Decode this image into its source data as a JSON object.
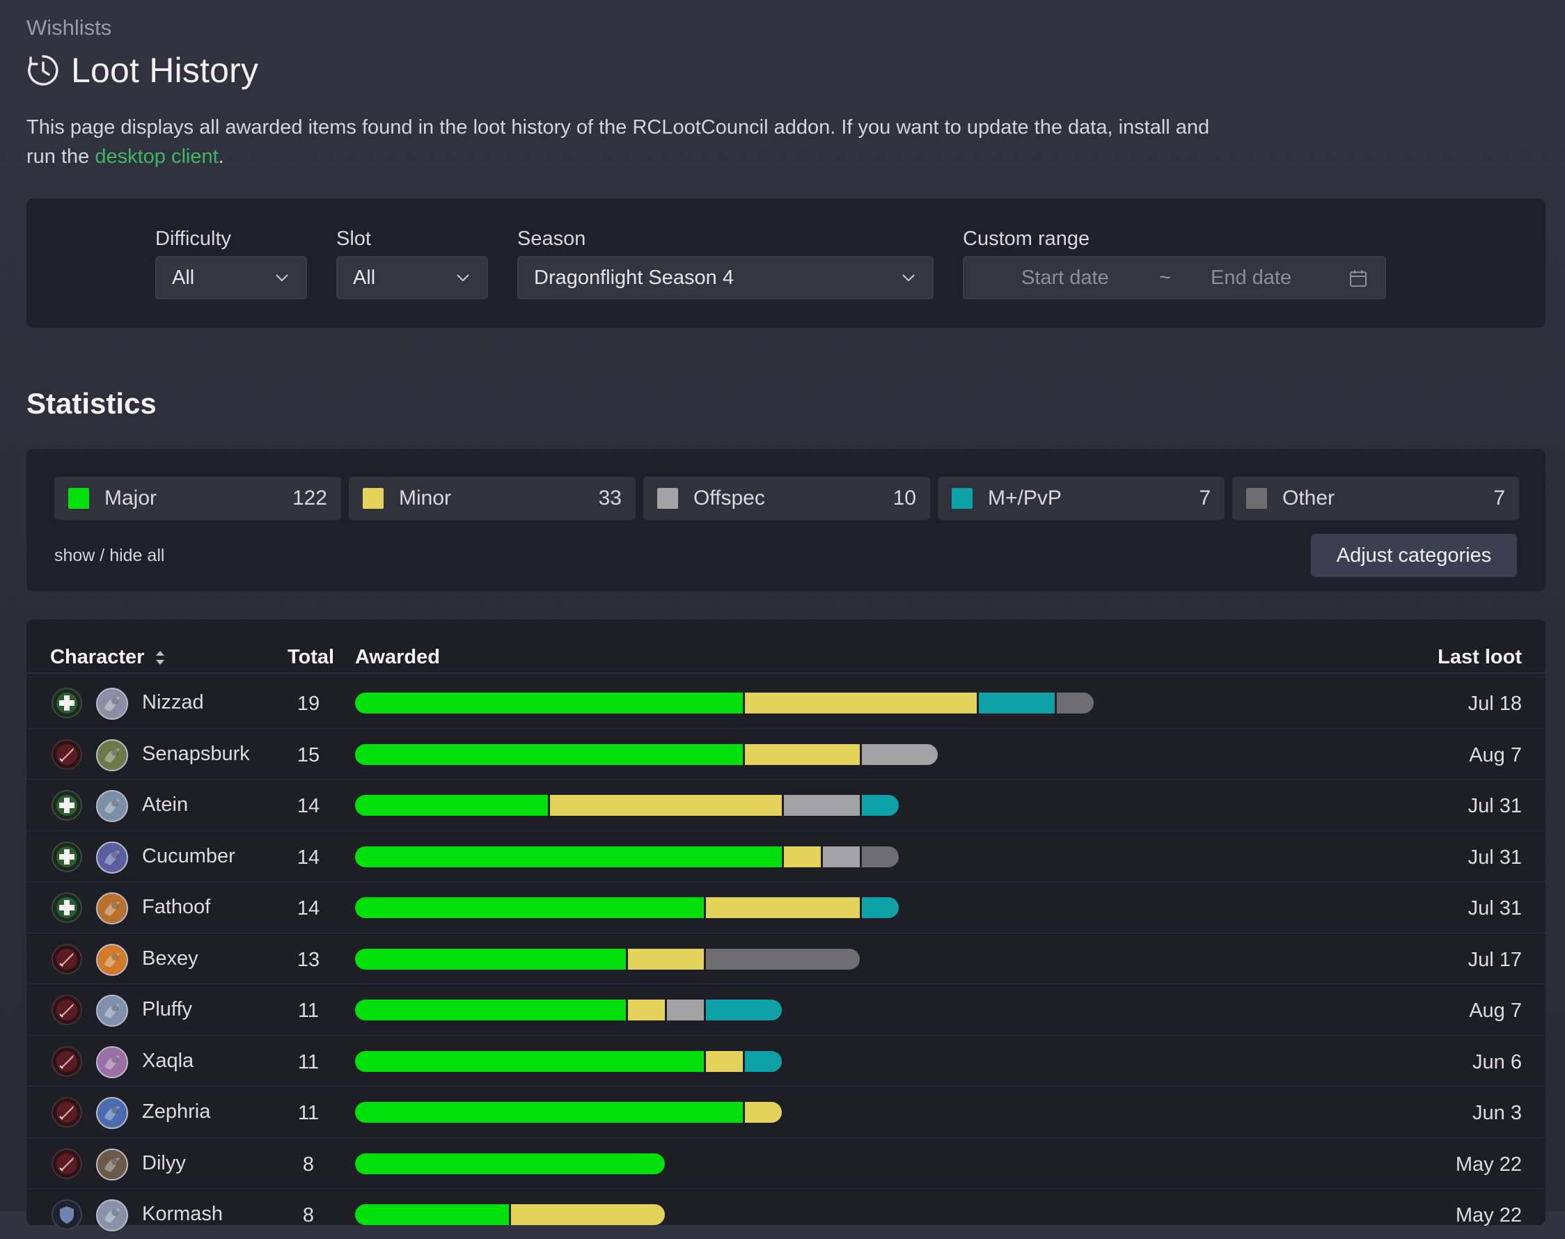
{
  "breadcrumb": "Wishlists",
  "title": "Loot History",
  "intro": {
    "text_before": "This page displays all awarded items found in the loot history of the RCLootCouncil addon. If you want to update the data, install and run the ",
    "link_text": "desktop client",
    "text_after": "."
  },
  "filters": {
    "difficulty": {
      "label": "Difficulty",
      "value": "All"
    },
    "slot": {
      "label": "Slot",
      "value": "All"
    },
    "season": {
      "label": "Season",
      "value": "Dragonflight Season 4"
    },
    "custom_range": {
      "label": "Custom range",
      "start_placeholder": "Start date",
      "separator": "~",
      "end_placeholder": "End date"
    }
  },
  "statistics": {
    "heading": "Statistics",
    "categories": [
      {
        "key": "major",
        "name": "Major",
        "count": "122",
        "color": "#00e00a"
      },
      {
        "key": "minor",
        "name": "Minor",
        "count": "33",
        "color": "#e3d35b"
      },
      {
        "key": "offspec",
        "name": "Offspec",
        "count": "10",
        "color": "#a3a3a6"
      },
      {
        "key": "mplus",
        "name": "M+/PvP",
        "count": "7",
        "color": "#0ea1a8"
      },
      {
        "key": "other",
        "name": "Other",
        "count": "7",
        "color": "#6e6e70"
      }
    ],
    "show_hide_label": "show / hide all",
    "adjust_button": "Adjust categories"
  },
  "table": {
    "headers": {
      "character": "Character",
      "total": "Total",
      "awarded": "Awarded",
      "last_loot": "Last loot"
    },
    "rows": [
      {
        "name": "Nizzad",
        "role": "healer",
        "avatar_color": "#8a8fa6",
        "total": "19",
        "last": "Jul 18",
        "awarded": {
          "major": 10,
          "minor": 6,
          "offspec": 0,
          "mplus": 2,
          "other": 1
        }
      },
      {
        "name": "Senapsburk",
        "role": "dps",
        "avatar_color": "#6c7a48",
        "total": "15",
        "last": "Aug 7",
        "awarded": {
          "major": 10,
          "minor": 3,
          "offspec": 2,
          "mplus": 0,
          "other": 0
        }
      },
      {
        "name": "Atein",
        "role": "healer",
        "avatar_color": "#7c8fa8",
        "total": "14",
        "last": "Jul 31",
        "awarded": {
          "major": 5,
          "minor": 6,
          "offspec": 2,
          "mplus": 1,
          "other": 0
        }
      },
      {
        "name": "Cucumber",
        "role": "healer",
        "avatar_color": "#5a5fa0",
        "total": "14",
        "last": "Jul 31",
        "awarded": {
          "major": 11,
          "minor": 1,
          "offspec": 1,
          "mplus": 0,
          "other": 1
        }
      },
      {
        "name": "Fathoof",
        "role": "healer",
        "avatar_color": "#b8702e",
        "total": "14",
        "last": "Jul 31",
        "awarded": {
          "major": 9,
          "minor": 4,
          "offspec": 0,
          "mplus": 1,
          "other": 0
        }
      },
      {
        "name": "Bexey",
        "role": "dps",
        "avatar_color": "#d07a2a",
        "total": "13",
        "last": "Jul 17",
        "awarded": {
          "major": 7,
          "minor": 2,
          "offspec": 0,
          "mplus": 0,
          "other": 4
        }
      },
      {
        "name": "Pluffy",
        "role": "dps",
        "avatar_color": "#7f91ac",
        "total": "11",
        "last": "Aug 7",
        "awarded": {
          "major": 7,
          "minor": 1,
          "offspec": 1,
          "mplus": 2,
          "other": 0
        }
      },
      {
        "name": "Xaqla",
        "role": "dps",
        "avatar_color": "#9b6fa6",
        "total": "11",
        "last": "Jun 6",
        "awarded": {
          "major": 9,
          "minor": 1,
          "offspec": 0,
          "mplus": 1,
          "other": 0
        }
      },
      {
        "name": "Zephria",
        "role": "dps",
        "avatar_color": "#4a6bb0",
        "total": "11",
        "last": "Jun 3",
        "awarded": {
          "major": 10,
          "minor": 1,
          "offspec": 0,
          "mplus": 0,
          "other": 0
        }
      },
      {
        "name": "Dilyy",
        "role": "dps",
        "avatar_color": "#6b5a4a",
        "total": "8",
        "last": "May 22",
        "awarded": {
          "major": 8,
          "minor": 0,
          "offspec": 0,
          "mplus": 0,
          "other": 0
        }
      },
      {
        "name": "Kormash",
        "role": "tank",
        "avatar_color": "#8792a8",
        "total": "8",
        "last": "May 22",
        "awarded": {
          "major": 4,
          "minor": 4,
          "offspec": 0,
          "mplus": 0,
          "other": 0
        }
      }
    ]
  }
}
